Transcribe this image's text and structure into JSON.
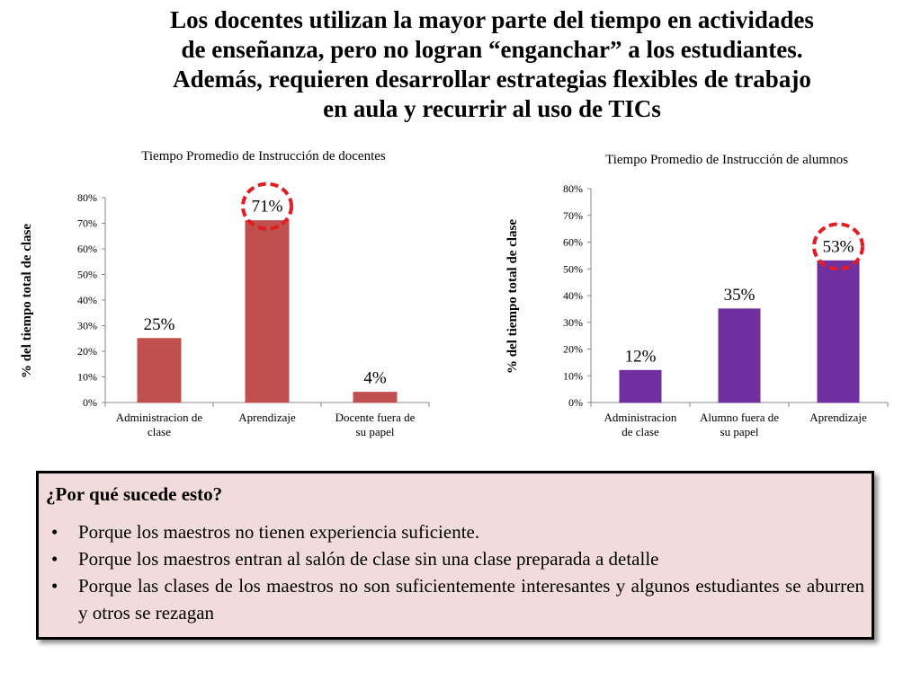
{
  "title": {
    "lines": [
      "Los docentes utilizan la mayor parte del tiempo en actividades",
      "de enseñanza, pero no logran “enganchar” a los estudiantes.",
      "Además, requieren desarrollar estrategias flexibles de trabajo",
      "en aula y recurrir al uso de TICs"
    ]
  },
  "chart_data": [
    {
      "type": "bar",
      "title": "Tiempo Promedio de Instrucción de docentes",
      "ylabel": "% del tiempo total de clase",
      "xlabel": "",
      "categories": [
        "Administracion de clase",
        "Aprendizaje",
        "Docente fuera de su papel"
      ],
      "category_lines": [
        [
          "Administracion de",
          "clase"
        ],
        [
          "Aprendizaje"
        ],
        [
          "Docente fuera de",
          "su papel"
        ]
      ],
      "values": [
        25,
        71,
        4
      ],
      "data_labels": [
        "25%",
        "71%",
        "4%"
      ],
      "yticks": [
        "0%",
        "10%",
        "20%",
        "30%",
        "40%",
        "50%",
        "60%",
        "70%",
        "80%"
      ],
      "ylim": [
        0,
        80
      ],
      "grid": false,
      "bar_color": "#c0504d",
      "highlight_category": "Aprendizaje",
      "highlight_color": "#e31c23"
    },
    {
      "type": "bar",
      "title": "Tiempo Promedio de Instrucción de alumnos",
      "ylabel": "% del tiempo total de clase",
      "xlabel": "",
      "categories": [
        "Administracion de clase",
        "Alumno fuera de su papel",
        "Aprendizaje"
      ],
      "category_lines": [
        [
          "Administracion",
          "de clase"
        ],
        [
          "Alumno fuera de",
          "su papel"
        ],
        [
          "Aprendizaje"
        ]
      ],
      "values": [
        12,
        35,
        53
      ],
      "data_labels": [
        "12%",
        "35%",
        "53%"
      ],
      "yticks": [
        "0%",
        "10%",
        "20%",
        "30%",
        "40%",
        "50%",
        "60%",
        "70%",
        "80%"
      ],
      "ylim": [
        0,
        80
      ],
      "grid": false,
      "bar_color": "#7030a0",
      "highlight_category": "Aprendizaje",
      "highlight_color": "#e31c23"
    }
  ],
  "callout": {
    "heading": "¿Por qué sucede esto?",
    "bullet_char": "•",
    "bullets": [
      "Porque los maestros no tienen experiencia suficiente.",
      "Porque los maestros entran al salón de clase sin una clase preparada a detalle",
      "Porque las clases de los maestros no son suficientemente interesantes y algunos estudiantes se aburren y otros se rezagan"
    ],
    "background_color": "#f2dcdb"
  }
}
